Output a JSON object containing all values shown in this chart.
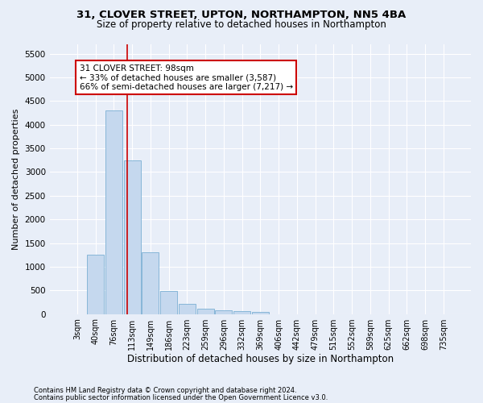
{
  "title_line1": "31, CLOVER STREET, UPTON, NORTHAMPTON, NN5 4BA",
  "title_line2": "Size of property relative to detached houses in Northampton",
  "xlabel": "Distribution of detached houses by size in Northampton",
  "ylabel": "Number of detached properties",
  "footnote1": "Contains HM Land Registry data © Crown copyright and database right 2024.",
  "footnote2": "Contains public sector information licensed under the Open Government Licence v3.0.",
  "bar_labels": [
    "3sqm",
    "40sqm",
    "76sqm",
    "113sqm",
    "149sqm",
    "186sqm",
    "223sqm",
    "259sqm",
    "296sqm",
    "332sqm",
    "369sqm",
    "406sqm",
    "442sqm",
    "479sqm",
    "515sqm",
    "552sqm",
    "589sqm",
    "625sqm",
    "662sqm",
    "698sqm",
    "735sqm"
  ],
  "bar_values": [
    0,
    1250,
    4300,
    3250,
    1300,
    490,
    220,
    110,
    80,
    55,
    50,
    0,
    0,
    0,
    0,
    0,
    0,
    0,
    0,
    0,
    0
  ],
  "bar_color": "#c5d8ee",
  "bar_edge_color": "#7aafd4",
  "vline_x": 2.72,
  "vline_color": "#cc0000",
  "annotation_text": "31 CLOVER STREET: 98sqm\n← 33% of detached houses are smaller (3,587)\n66% of semi-detached houses are larger (7,217) →",
  "annotation_box_facecolor": "#ffffff",
  "annotation_box_edgecolor": "#cc0000",
  "ylim": [
    0,
    5700
  ],
  "yticks": [
    0,
    500,
    1000,
    1500,
    2000,
    2500,
    3000,
    3500,
    4000,
    4500,
    5000,
    5500
  ],
  "background_color": "#e8eef8",
  "grid_color": "#ffffff",
  "title1_fontsize": 9.5,
  "title2_fontsize": 8.5,
  "xlabel_fontsize": 8.5,
  "ylabel_fontsize": 8
}
